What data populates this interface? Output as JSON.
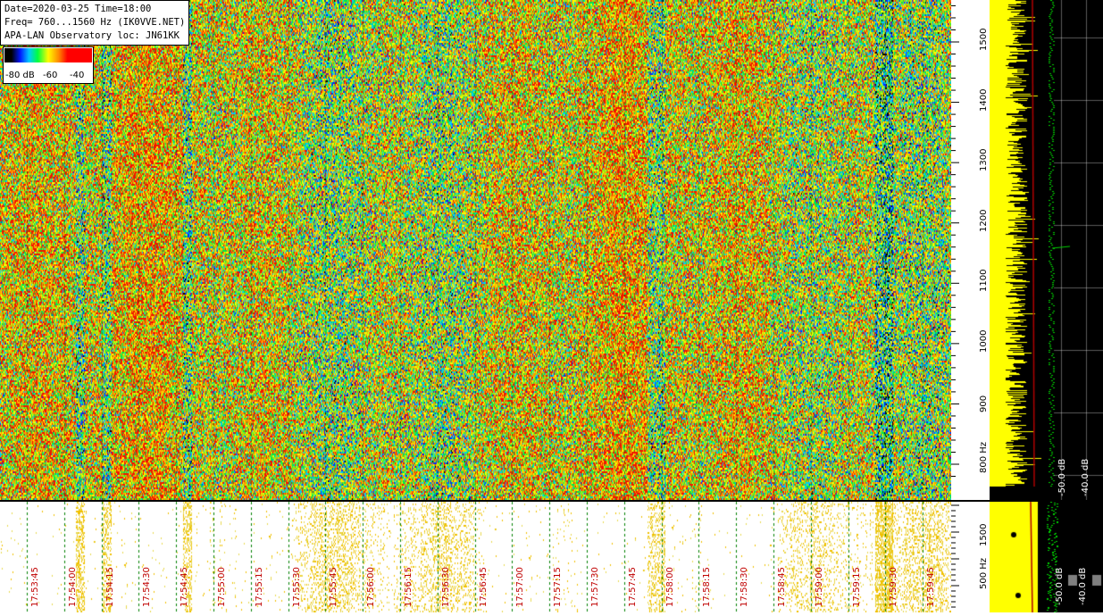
{
  "info": {
    "line1": "Date=2020-03-25 Time=18:00",
    "line2": "Freq= 760...1560 Hz (IK0VVE.NET)",
    "line3": "APA-LAN Observatory loc: JN61KK"
  },
  "colorbar": {
    "label_min": "-80 dB",
    "label_mid": "-60",
    "label_max": "-40"
  },
  "chart_data": {
    "type": "heatmap",
    "title": "",
    "xlabel": "",
    "ylabel": "Hz",
    "x_ticks": [
      "17:53:45",
      "17:54:00",
      "17:54:15",
      "17:54:30",
      "17:54:45",
      "17:55:00",
      "17:55:15",
      "17:55:30",
      "17:55:45",
      "17:56:00",
      "17:56:15",
      "17:56:30",
      "17:56:45",
      "17:57:00",
      "17:57:15",
      "17:57:30",
      "17:57:45",
      "17:58:00",
      "17:58:15",
      "17:58:30",
      "17:58:45",
      "17:59:00",
      "17:59:15",
      "17:59:30",
      "17:59:45"
    ],
    "y_ticks": [
      "1500",
      "1400",
      "1300",
      "1200",
      "1100",
      "1000",
      "900",
      "800 Hz"
    ],
    "y_ticks_bottom": [
      "1500",
      "500 Hz"
    ],
    "ylim": [
      760,
      1560
    ],
    "color_scale_db": [
      -80,
      -40
    ],
    "spectrum_labels": [
      "-50.0 dB",
      "-40.0 dB"
    ]
  },
  "colors": {
    "background": "#ffffff",
    "time_label": "#c00000",
    "grid_green": "#007000",
    "spectrum_fill": "#ffff00",
    "spectrum_green": "#00d000"
  }
}
